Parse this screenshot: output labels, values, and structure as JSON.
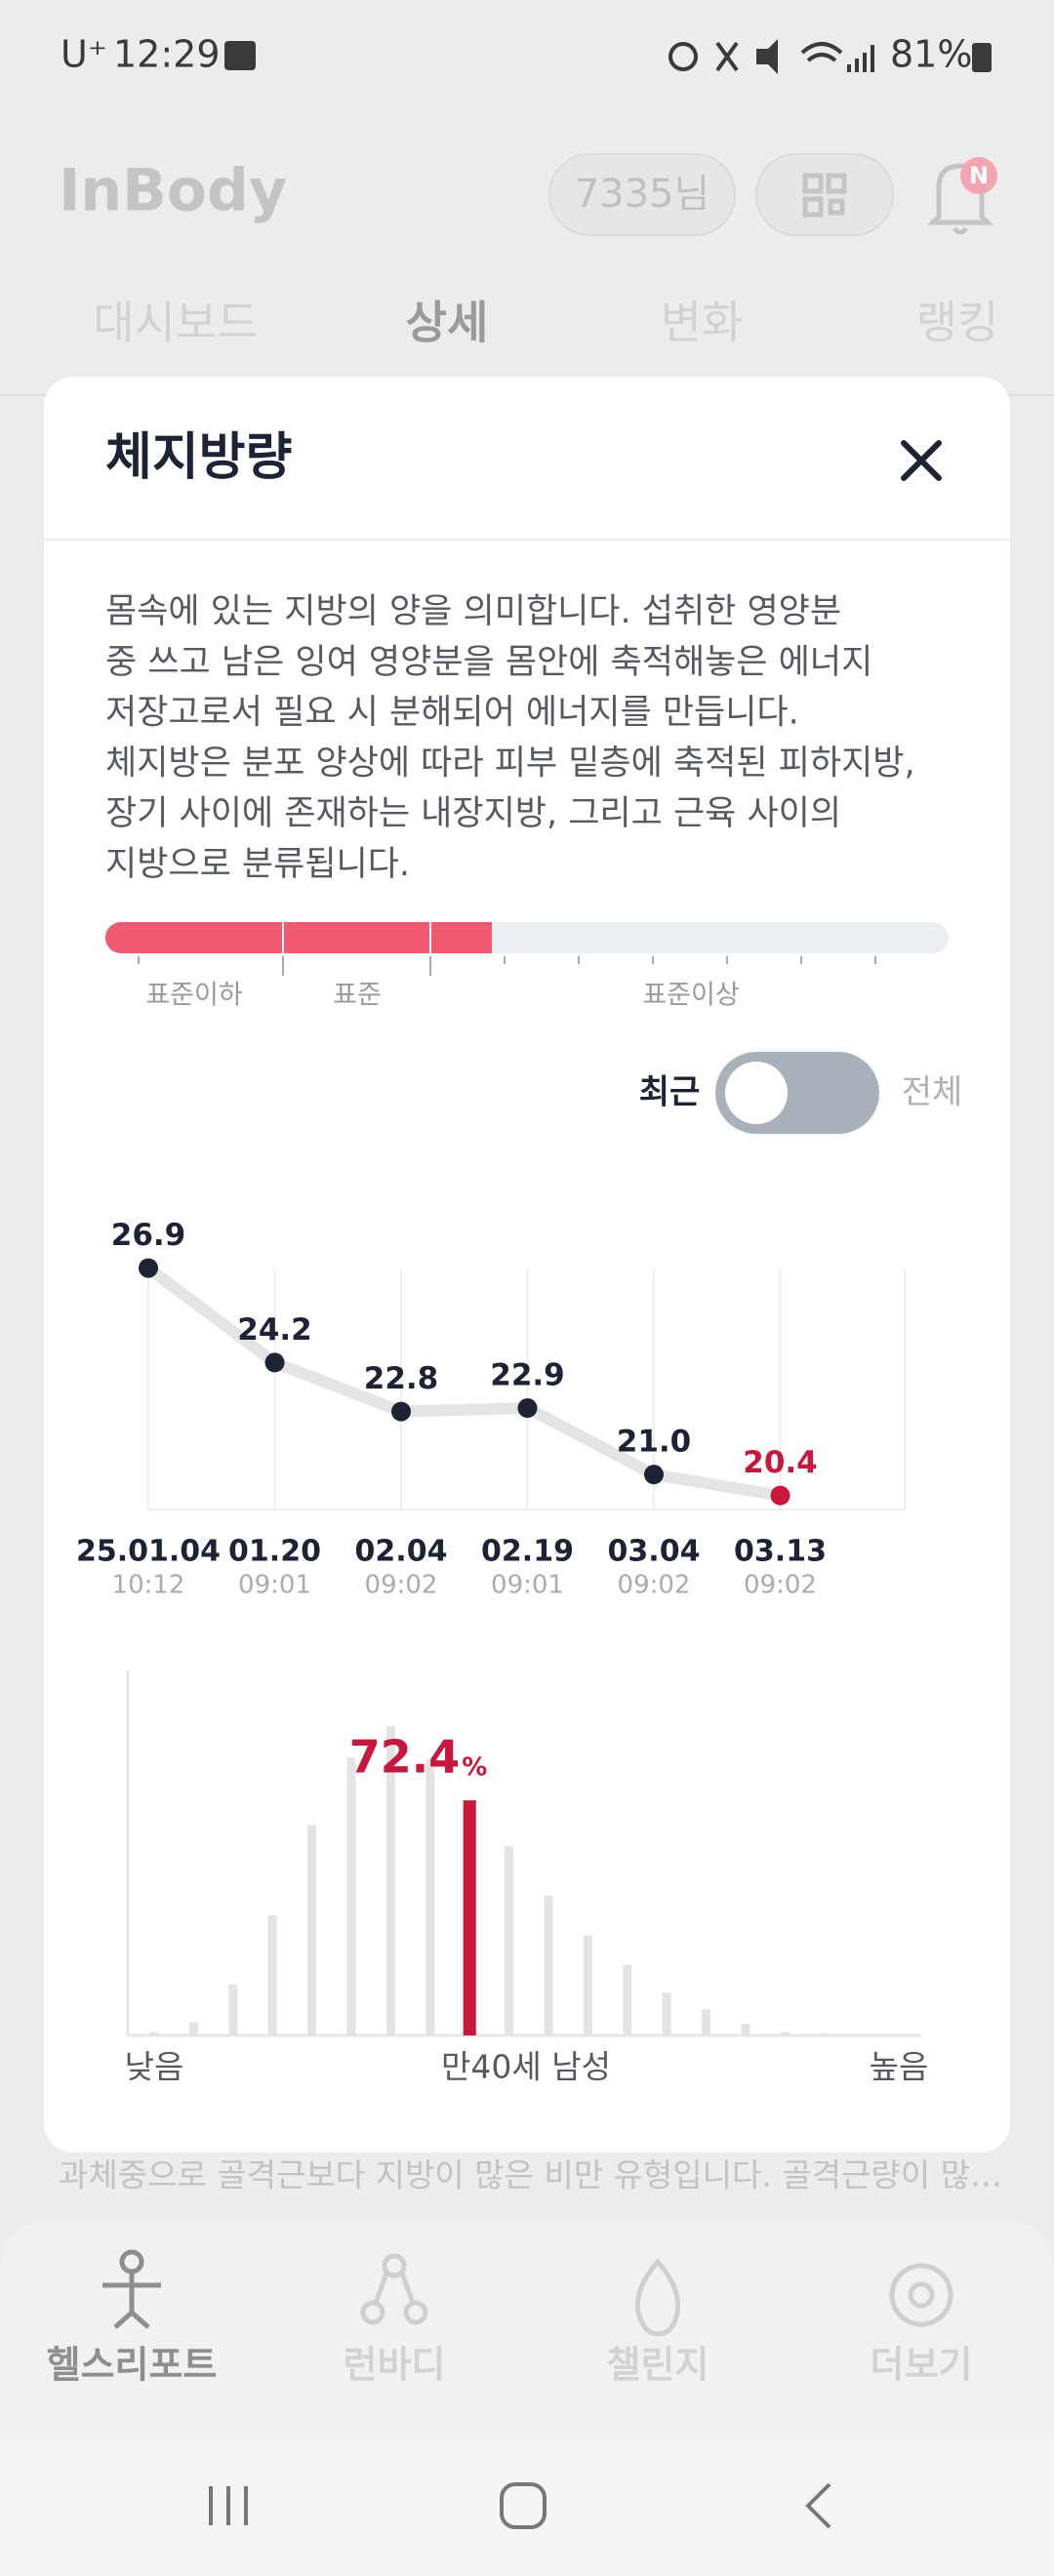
{
  "status_bar": {
    "carrier": "U⁺",
    "time": "12:29",
    "battery": "81%"
  },
  "header": {
    "logo": "InBody",
    "user": "7335님",
    "badge": "N"
  },
  "tabs": [
    "대시보드",
    "상세",
    "변화",
    "랭킹"
  ],
  "modal": {
    "title": "체지방량",
    "description": [
      "몸속에 있는 지방의 양을 의미합니다. 섭취한 영양분",
      "중 쓰고 남은 잉여 영양분을 몸안에 축적해놓은 에너지",
      "저장고로서 필요 시 분해되어 에너지를 만듭니다.",
      "체지방은 분포 양상에 따라 피부 밑층에 축적된 피하지방,",
      "장기 사이에 존재하는 내장지방, 그리고 근육 사이의",
      "지방으로 분류됩니다."
    ],
    "range_labels": [
      "표준이하",
      "표준",
      "표준이상"
    ],
    "toggle": {
      "left": "최근",
      "right": "전체"
    }
  },
  "chart_data": [
    {
      "type": "line",
      "categories": [
        "25.01.04",
        "01.20",
        "02.04",
        "02.19",
        "03.04",
        "03.13"
      ],
      "times": [
        "10:12",
        "09:01",
        "09:02",
        "09:01",
        "09:02",
        "09:02"
      ],
      "values": [
        26.9,
        24.2,
        22.8,
        22.9,
        21.0,
        20.4
      ],
      "value_labels": [
        "26.9",
        "24.2",
        "22.8",
        "22.9",
        "21.0",
        "20.4"
      ],
      "colors": [
        "#1e2235",
        "#1e2235",
        "#1e2235",
        "#1e2235",
        "#1e2235",
        "#c8163c"
      ],
      "line_color": "#e4e4e4",
      "ylim": [
        20,
        27
      ]
    },
    {
      "type": "bar",
      "values": [
        2,
        8,
        31,
        73,
        128,
        169,
        188,
        168,
        143,
        115,
        85,
        61,
        43,
        26,
        16,
        7,
        2,
        1
      ],
      "colors": [
        "#e3e3e3",
        "#e3e3e3",
        "#e3e3e3",
        "#e3e3e3",
        "#e3e3e3",
        "#e3e3e3",
        "#e3e3e3",
        "#e3e3e3",
        "#c8163c",
        "#e3e3e3",
        "#e3e3e3",
        "#e3e3e3",
        "#e3e3e3",
        "#e3e3e3",
        "#e3e3e3",
        "#e3e3e3",
        "#e3e3e3",
        "#e3e3e3"
      ],
      "ylim": [
        0,
        222
      ],
      "annotation": {
        "value": 72.4,
        "unit": "%"
      },
      "x_labels": [
        "낮음",
        "만40세 남성",
        "높음"
      ]
    }
  ],
  "summary_text": "과체중으로 골격근보다 지방이 많은 비만 유형입니다. 골격근량이 많…",
  "nav": [
    "헬스리포트",
    "런바디",
    "챌린지",
    "더보기"
  ]
}
